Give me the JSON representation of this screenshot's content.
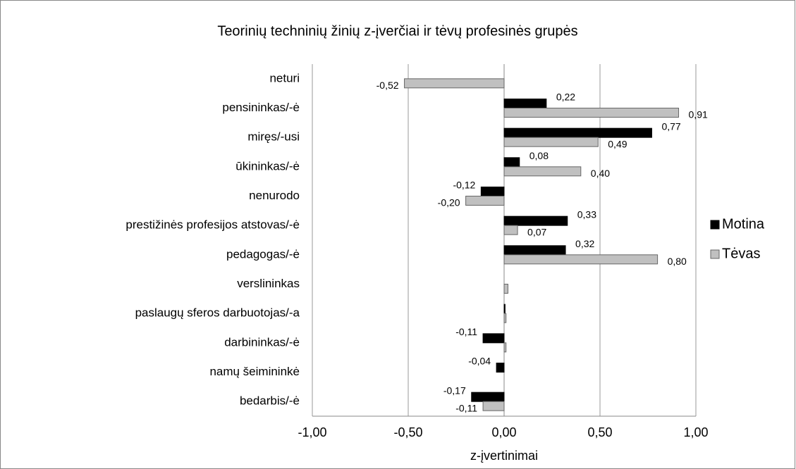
{
  "chart_data": {
    "type": "barh",
    "title": "Teorinių techninių žinių z-įverčiai ir tėvų profesinės grupės",
    "xlabel": "z-įvertinimai",
    "categories": [
      "neturi",
      "pensininkas/-ė",
      "miręs/-usi",
      "ūkininkas/-ė",
      "nenurodo",
      "prestižinės profesijos atstovas/-ė",
      "pedagogas/-ė",
      "verslininkas",
      "paslaugų sferos darbuotojas/-a",
      "darbininkas/-ė",
      "namų šeimininkė",
      "bedarbis/-ė"
    ],
    "series": [
      {
        "name": "Motina",
        "color": "#000000",
        "values": [
          null,
          0.22,
          0.77,
          0.08,
          -0.12,
          0.33,
          0.32,
          null,
          0.005,
          -0.11,
          -0.04,
          -0.17
        ],
        "value_labels": [
          null,
          "0,22",
          "0,77",
          "0,08",
          "-0,12",
          "0,33",
          "0,32",
          null,
          null,
          "-0,11",
          "-0,04",
          "-0,17"
        ]
      },
      {
        "name": "Tėvas",
        "color": "#c0c0c0",
        "values": [
          -0.52,
          0.91,
          0.49,
          0.4,
          -0.2,
          0.07,
          0.8,
          0.02,
          0.01,
          0.01,
          null,
          -0.11
        ],
        "value_labels": [
          "-0,52",
          "0,91",
          "0,49",
          "0,40",
          "-0,20",
          "0,07",
          "0,80",
          null,
          null,
          null,
          null,
          "-0,11"
        ]
      }
    ],
    "xlim": [
      -1,
      1
    ],
    "xticks": [
      {
        "value": -1,
        "label": "-1,00"
      },
      {
        "value": -0.5,
        "label": "-0,50"
      },
      {
        "value": 0,
        "label": "0,00"
      },
      {
        "value": 0.5,
        "label": "0,50"
      },
      {
        "value": 1,
        "label": "1,00"
      }
    ],
    "grid": true,
    "legend": "right"
  }
}
